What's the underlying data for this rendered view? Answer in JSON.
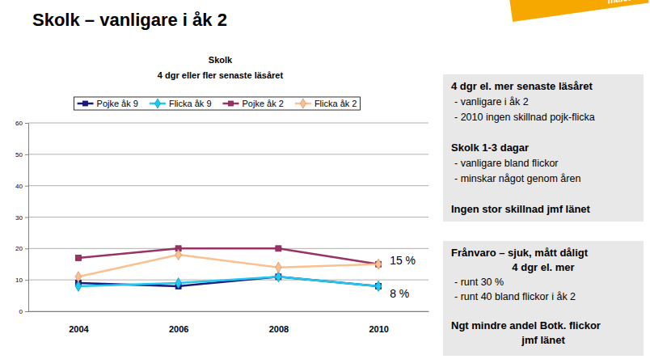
{
  "page": {
    "title": "Skolk – vanligare i åk 2",
    "badge": "målet ?",
    "boxes": [
      [
        {
          "heading": [
            "4 dgr el. mer senaste läsåret"
          ],
          "items": [
            "- vanligare i åk 2",
            "- 2010 ingen skillnad pojk-flicka"
          ]
        },
        {
          "heading": [
            "Skolk 1-3 dagar"
          ],
          "items": [
            "- vanligare bland flickor",
            "- minskar något genom åren"
          ]
        },
        {
          "heading": [
            "Ingen stor skillnad jmf länet"
          ],
          "items": []
        }
      ],
      [
        {
          "heading": [
            "Frånvaro – sjuk, mått dåligt",
            "4 dgr el. mer"
          ],
          "items": [
            "- runt 30 %",
            "- runt 40 bland flickor i åk 2"
          ]
        },
        {
          "heading": [
            "Ngt mindre andel Botk. flickor",
            "jmf länet"
          ],
          "items": []
        }
      ]
    ]
  },
  "chart_data": {
    "type": "line",
    "title": "Skolk",
    "subtitle": "4 dgr eller fler senaste läsåret",
    "categories": [
      "2004",
      "2006",
      "2008",
      "2010"
    ],
    "series": [
      {
        "name": "Pojke åk 9",
        "color": "#1a1a80",
        "marker": "square",
        "values": [
          9,
          8,
          11,
          8
        ]
      },
      {
        "name": "Flicka åk 9",
        "color": "#1ec8f0",
        "marker": "diamond",
        "values": [
          8,
          9,
          11,
          8
        ]
      },
      {
        "name": "Pojke åk 2",
        "color": "#993366",
        "marker": "square",
        "values": [
          17,
          20,
          20,
          15
        ]
      },
      {
        "name": "Flicka åk 2",
        "color": "#fac090",
        "marker": "diamond",
        "values": [
          11,
          18,
          14,
          15
        ]
      }
    ],
    "ylim": [
      0,
      60
    ],
    "yticks": [
      0,
      10,
      20,
      30,
      40,
      50,
      60
    ],
    "grid": true,
    "legend": "top",
    "annotations": [
      {
        "text": "15 %",
        "category": "2010",
        "value": 15
      },
      {
        "text": "8 %",
        "category": "2010",
        "value": 8
      }
    ]
  }
}
